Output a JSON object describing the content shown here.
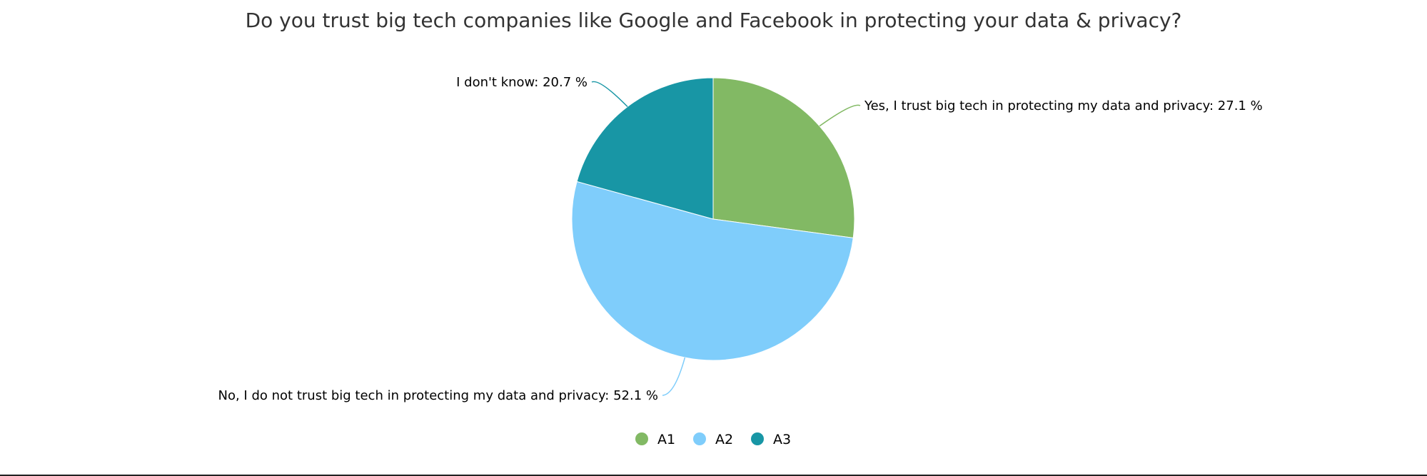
{
  "chart_data": {
    "type": "pie",
    "title": "Do you trust big tech companies like Google and Facebook in protecting your data & privacy?",
    "slices": [
      {
        "key": "A1",
        "label": "Yes, I trust big tech in protecting my data and privacy",
        "value": 27.1,
        "display": "Yes, I trust big tech in protecting my data and privacy: 27.1 %",
        "color": "#82b964"
      },
      {
        "key": "A2",
        "label": "No, I do not trust big tech in protecting my data and privacy",
        "value": 52.1,
        "display": "No, I do not trust big tech in protecting my data and privacy: 52.1 %",
        "color": "#7fcdfb"
      },
      {
        "key": "A3",
        "label": "I don't know",
        "value": 20.7,
        "display": "I don't know: 20.7 %",
        "color": "#1896a5"
      }
    ],
    "legend": {
      "position": "bottom-center",
      "items": [
        "A1",
        "A2",
        "A3"
      ]
    }
  }
}
